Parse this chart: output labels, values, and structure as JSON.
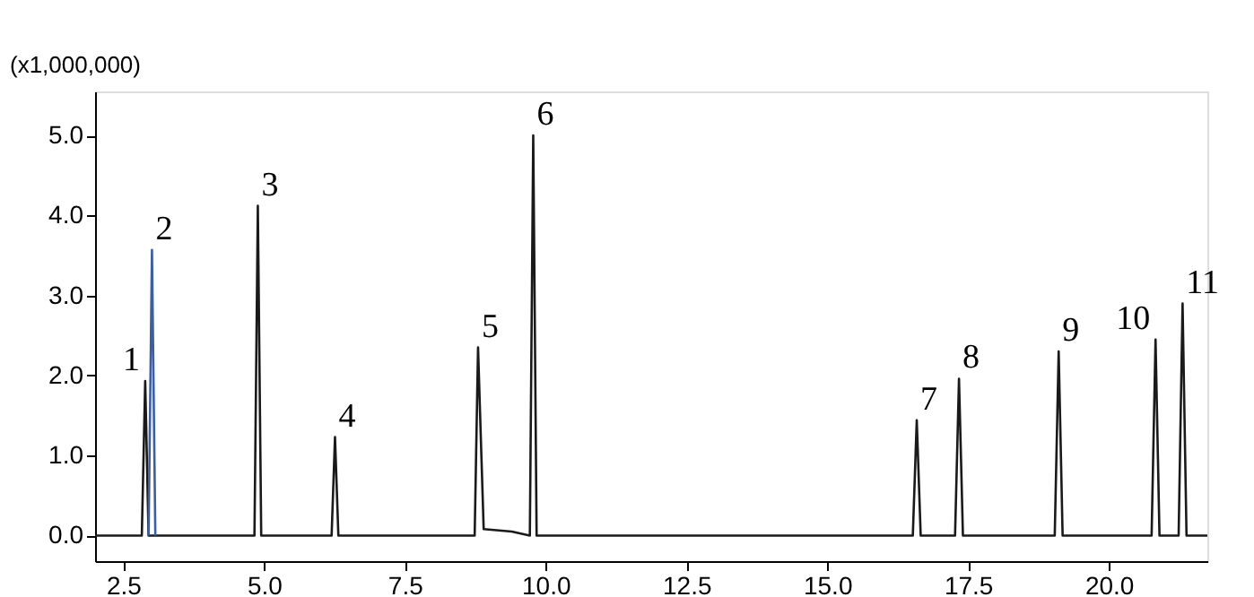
{
  "chart_data": {
    "type": "line",
    "ylabel": "(x1,000,000)",
    "xlim": [
      2.0,
      21.75
    ],
    "ylim": [
      -0.32,
      5.55
    ],
    "xticks": [
      {
        "value": 2.5,
        "label": "2.5"
      },
      {
        "value": 5,
        "label": "5.0"
      },
      {
        "value": 7.5,
        "label": "7.5"
      },
      {
        "value": 10,
        "label": "10.0"
      },
      {
        "value": 12.5,
        "label": "12.5"
      },
      {
        "value": 15,
        "label": "15.0"
      },
      {
        "value": 17.5,
        "label": "17.5"
      },
      {
        "value": 20,
        "label": "20.0"
      }
    ],
    "yticks": [
      {
        "value": 0,
        "label": "0.0"
      },
      {
        "value": 1,
        "label": "1.0"
      },
      {
        "value": 2,
        "label": "2.0"
      },
      {
        "value": 3,
        "label": "3.0"
      },
      {
        "value": 4,
        "label": "4.0"
      },
      {
        "value": 5,
        "label": "5.0"
      }
    ],
    "grid": false,
    "series": [
      {
        "color": "#1a1a1a",
        "x": [
          2.0,
          2.83,
          2.89,
          2.95,
          4.83,
          4.89,
          4.95,
          6.2,
          6.26,
          6.32,
          8.74,
          8.8,
          8.9,
          9.4,
          9.72,
          9.78,
          9.84,
          16.52,
          16.59,
          16.66,
          17.27,
          17.34,
          17.41,
          19.04,
          19.11,
          19.18,
          20.76,
          20.83,
          20.9,
          21.24,
          21.31,
          21.38,
          21.75
        ],
        "values": [
          0,
          0,
          1.93,
          0,
          0,
          4.12,
          0,
          0,
          1.23,
          0,
          0,
          2.35,
          0.08,
          0.05,
          0,
          5.0,
          0,
          0,
          1.44,
          0,
          0,
          1.96,
          0,
          0,
          2.3,
          0,
          0,
          2.45,
          0,
          0,
          2.9,
          0,
          0
        ]
      },
      {
        "color": "#3a5fa8",
        "x": [
          2.95,
          3.01,
          3.07
        ],
        "values": [
          0,
          3.57,
          0
        ]
      }
    ],
    "annotations": [
      {
        "text": "1",
        "x": 2.89,
        "y": 1.93
      },
      {
        "text": "2",
        "x": 3.01,
        "y": 3.57
      },
      {
        "text": "3",
        "x": 4.89,
        "y": 4.12
      },
      {
        "text": "4",
        "x": 6.26,
        "y": 1.23
      },
      {
        "text": "5",
        "x": 8.8,
        "y": 2.35
      },
      {
        "text": "6",
        "x": 9.78,
        "y": 5.0
      },
      {
        "text": "7",
        "x": 16.59,
        "y": 1.44
      },
      {
        "text": "8",
        "x": 17.34,
        "y": 1.96
      },
      {
        "text": "9",
        "x": 19.11,
        "y": 2.3
      },
      {
        "text": "10",
        "x": 20.83,
        "y": 2.45
      },
      {
        "text": "11",
        "x": 21.31,
        "y": 2.9
      }
    ]
  }
}
